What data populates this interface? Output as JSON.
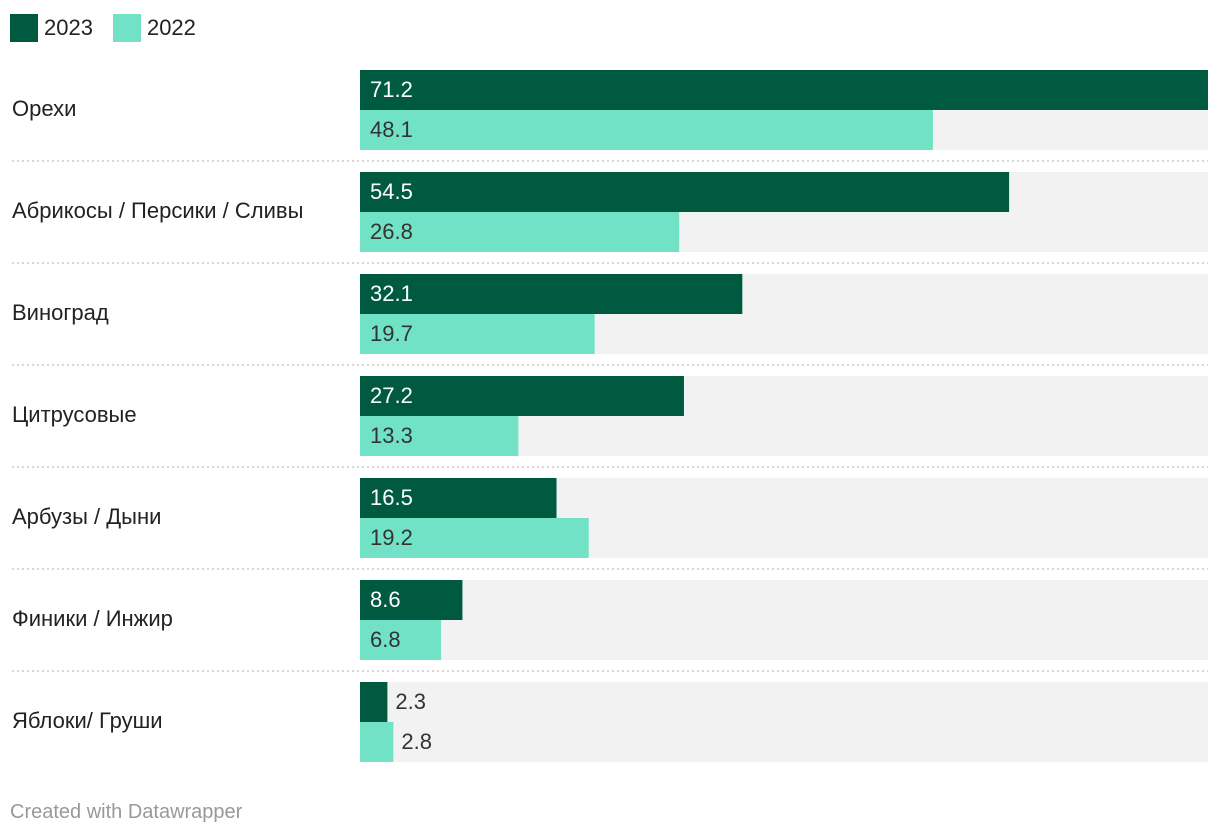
{
  "legend": [
    {
      "name": "2023",
      "color": "#005a40"
    },
    {
      "name": "2022",
      "color": "#71e2c6"
    }
  ],
  "chart_data": {
    "type": "bar",
    "orientation": "horizontal",
    "categories": [
      "Орехи",
      "Абрикосы / Персики / Сливы",
      "Виноград",
      "Цитрусовые",
      "Арбузы / Дыни",
      "Финики / Инжир",
      "Яблоки/ Груши"
    ],
    "series": [
      {
        "name": "2023",
        "color": "#005a40",
        "values": [
          71.2,
          54.5,
          32.1,
          27.2,
          16.5,
          8.6,
          2.3
        ]
      },
      {
        "name": "2022",
        "color": "#71e2c6",
        "values": [
          48.1,
          26.8,
          19.7,
          13.3,
          19.2,
          6.8,
          2.8
        ]
      }
    ],
    "xlim": [
      0,
      71.2
    ],
    "title": "",
    "xlabel": "",
    "ylabel": "",
    "legend_position": "top-left",
    "grid": false
  },
  "footer": {
    "credit": "Created with Datawrapper"
  },
  "colors": {
    "track": "#f2f2f2",
    "separator": "#cccccc",
    "label_dark": "#ffffff",
    "label_light": "#333333"
  }
}
